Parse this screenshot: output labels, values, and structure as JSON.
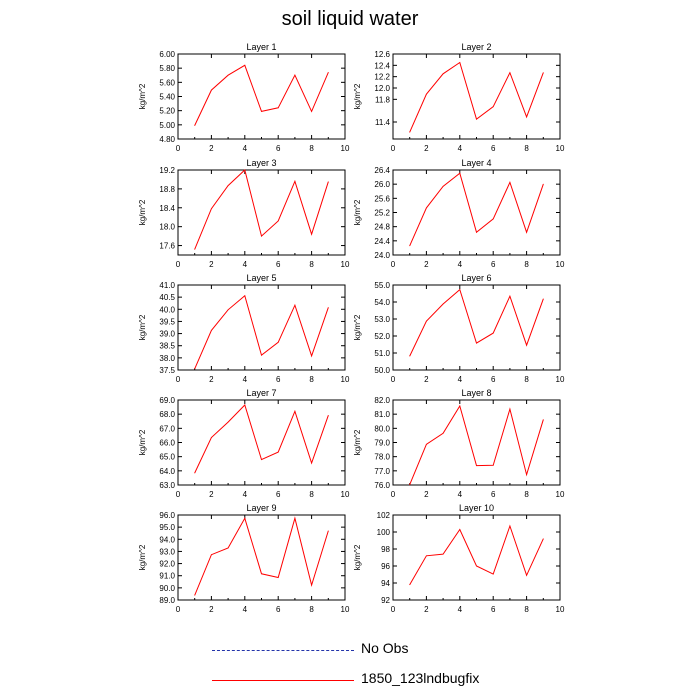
{
  "title": "soil liquid water",
  "legend": [
    {
      "label": "No Obs",
      "style": "dashed",
      "color": "#2233aa"
    },
    {
      "label": "1850_123lndbugfix",
      "style": "solid",
      "color": "#ff0000"
    }
  ],
  "chart_data": [
    {
      "type": "line",
      "title": "Layer 1",
      "ylabel": "kg/m^2",
      "xlim": [
        0,
        10
      ],
      "ylim": [
        4.8,
        6.0
      ],
      "xticks": [
        0,
        2,
        4,
        6,
        8,
        10
      ],
      "yticks": [
        "4.80",
        "5.00",
        "5.20",
        "5.40",
        "5.60",
        "5.80",
        "6.00"
      ],
      "x": [
        1,
        2,
        3,
        4,
        5,
        6,
        7,
        8,
        9
      ],
      "series": [
        {
          "name": "1850_123lndbugfix",
          "color": "#ff0000",
          "values": [
            4.99,
            5.49,
            5.7,
            5.84,
            5.19,
            5.24,
            5.7,
            5.19,
            5.74
          ]
        }
      ]
    },
    {
      "type": "line",
      "title": "Layer 2",
      "ylabel": "kg/m^2",
      "xlim": [
        0,
        10
      ],
      "ylim": [
        11.1,
        12.6
      ],
      "xticks": [
        0,
        2,
        4,
        6,
        8,
        10
      ],
      "yticks": [
        "11.4",
        "11.8",
        "12.0",
        "12.2",
        "12.4",
        "12.6"
      ],
      "ytickvalues": [
        11.4,
        11.8,
        12.0,
        12.2,
        12.4,
        12.6
      ],
      "x": [
        1,
        2,
        3,
        4,
        5,
        6,
        7,
        8,
        9
      ],
      "series": [
        {
          "name": "1850_123lndbugfix",
          "color": "#ff0000",
          "values": [
            11.22,
            11.89,
            12.25,
            12.45,
            11.45,
            11.67,
            12.27,
            11.49,
            12.27
          ]
        }
      ]
    },
    {
      "type": "line",
      "title": "Layer 3",
      "ylabel": "kg/m^2",
      "xlim": [
        0,
        10
      ],
      "ylim": [
        17.4,
        19.2
      ],
      "xticks": [
        0,
        2,
        4,
        6,
        8,
        10
      ],
      "yticks": [
        "17.6",
        "18.0",
        "18.4",
        "18.8",
        "19.2"
      ],
      "x": [
        1,
        2,
        3,
        4,
        5,
        6,
        7,
        8,
        9
      ],
      "series": [
        {
          "name": "1850_123lndbugfix",
          "color": "#ff0000",
          "values": [
            17.52,
            18.38,
            18.87,
            19.2,
            17.8,
            18.12,
            18.96,
            17.84,
            18.95
          ]
        }
      ]
    },
    {
      "type": "line",
      "title": "Layer 4",
      "ylabel": "kg/m^2",
      "xlim": [
        0,
        10
      ],
      "ylim": [
        24.0,
        26.4
      ],
      "xticks": [
        0,
        2,
        4,
        6,
        8,
        10
      ],
      "yticks": [
        "24.0",
        "24.4",
        "24.8",
        "25.2",
        "25.6",
        "26.0",
        "26.4"
      ],
      "x": [
        1,
        2,
        3,
        4,
        5,
        6,
        7,
        8,
        9
      ],
      "series": [
        {
          "name": "1850_123lndbugfix",
          "color": "#ff0000",
          "values": [
            24.26,
            25.33,
            25.94,
            26.31,
            24.64,
            25.02,
            26.05,
            24.64,
            26.0
          ]
        }
      ]
    },
    {
      "type": "line",
      "title": "Layer 5",
      "ylabel": "kg/m^2",
      "xlim": [
        0,
        10
      ],
      "ylim": [
        37.5,
        41.0
      ],
      "xticks": [
        0,
        2,
        4,
        6,
        8,
        10
      ],
      "yticks": [
        "37.5",
        "38.0",
        "38.5",
        "39.0",
        "39.5",
        "40.0",
        "40.5",
        "41.0"
      ],
      "x": [
        1,
        2,
        3,
        4,
        5,
        6,
        7,
        8,
        9
      ],
      "series": [
        {
          "name": "1850_123lndbugfix",
          "color": "#ff0000",
          "values": [
            37.55,
            39.13,
            39.98,
            40.56,
            38.11,
            38.64,
            40.17,
            38.08,
            40.07
          ]
        }
      ]
    },
    {
      "type": "line",
      "title": "Layer 6",
      "ylabel": "kg/m^2",
      "xlim": [
        0,
        10
      ],
      "ylim": [
        50.0,
        55.0
      ],
      "xticks": [
        0,
        2,
        4,
        6,
        8,
        10
      ],
      "yticks": [
        "50.0",
        "51.0",
        "52.0",
        "53.0",
        "54.0",
        "55.0"
      ],
      "x": [
        1,
        2,
        3,
        4,
        5,
        6,
        7,
        8,
        9
      ],
      "series": [
        {
          "name": "1850_123lndbugfix",
          "color": "#ff0000",
          "values": [
            50.82,
            52.87,
            53.88,
            54.73,
            51.58,
            52.17,
            54.34,
            51.46,
            54.18
          ]
        }
      ]
    },
    {
      "type": "line",
      "title": "Layer 7",
      "ylabel": "kg/m^2",
      "xlim": [
        0,
        10
      ],
      "ylim": [
        63.0,
        69.0
      ],
      "xticks": [
        0,
        2,
        4,
        6,
        8,
        10
      ],
      "yticks": [
        "63.0",
        "64.0",
        "65.0",
        "66.0",
        "67.0",
        "68.0",
        "69.0"
      ],
      "x": [
        1,
        2,
        3,
        4,
        5,
        6,
        7,
        8,
        9
      ],
      "series": [
        {
          "name": "1850_123lndbugfix",
          "color": "#ff0000",
          "values": [
            63.85,
            66.35,
            67.44,
            68.65,
            64.79,
            65.32,
            68.2,
            64.55,
            67.91
          ]
        }
      ]
    },
    {
      "type": "line",
      "title": "Layer 8",
      "ylabel": "kg/m^2",
      "xlim": [
        0,
        10
      ],
      "ylim": [
        76.0,
        82.0
      ],
      "xticks": [
        0,
        2,
        4,
        6,
        8,
        10
      ],
      "yticks": [
        "76.0",
        "77.0",
        "78.0",
        "79.0",
        "80.0",
        "81.0",
        "82.0"
      ],
      "x": [
        1,
        2,
        3,
        4,
        5,
        6,
        7,
        8,
        9
      ],
      "series": [
        {
          "name": "1850_123lndbugfix",
          "color": "#ff0000",
          "values": [
            76.02,
            78.87,
            79.65,
            81.58,
            77.37,
            77.39,
            81.36,
            76.73,
            80.61
          ]
        }
      ]
    },
    {
      "type": "line",
      "title": "Layer 9",
      "ylabel": "kg/m^2",
      "xlim": [
        0,
        10
      ],
      "ylim": [
        89.0,
        96.0
      ],
      "xticks": [
        0,
        2,
        4,
        6,
        8,
        10
      ],
      "yticks": [
        "89.0",
        "90.0",
        "91.0",
        "92.0",
        "93.0",
        "94.0",
        "95.0",
        "96.0"
      ],
      "x": [
        1,
        2,
        3,
        4,
        5,
        6,
        7,
        8,
        9
      ],
      "series": [
        {
          "name": "1850_123lndbugfix",
          "color": "#ff0000",
          "values": [
            89.39,
            92.73,
            93.28,
            95.73,
            91.16,
            90.85,
            95.74,
            90.23,
            94.69
          ]
        }
      ]
    },
    {
      "type": "line",
      "title": "Layer 10",
      "ylabel": "kg/m^2",
      "xlim": [
        0,
        10
      ],
      "ylim": [
        92,
        102
      ],
      "xticks": [
        0,
        2,
        4,
        6,
        8,
        10
      ],
      "yticks": [
        "92",
        "94",
        "96",
        "98",
        "100",
        "102"
      ],
      "x": [
        1,
        2,
        3,
        4,
        5,
        6,
        7,
        8,
        9
      ],
      "series": [
        {
          "name": "1850_123lndbugfix",
          "color": "#ff0000",
          "values": [
            93.8,
            97.2,
            97.4,
            100.3,
            96.0,
            95.05,
            100.7,
            94.9,
            99.2
          ]
        }
      ]
    }
  ]
}
